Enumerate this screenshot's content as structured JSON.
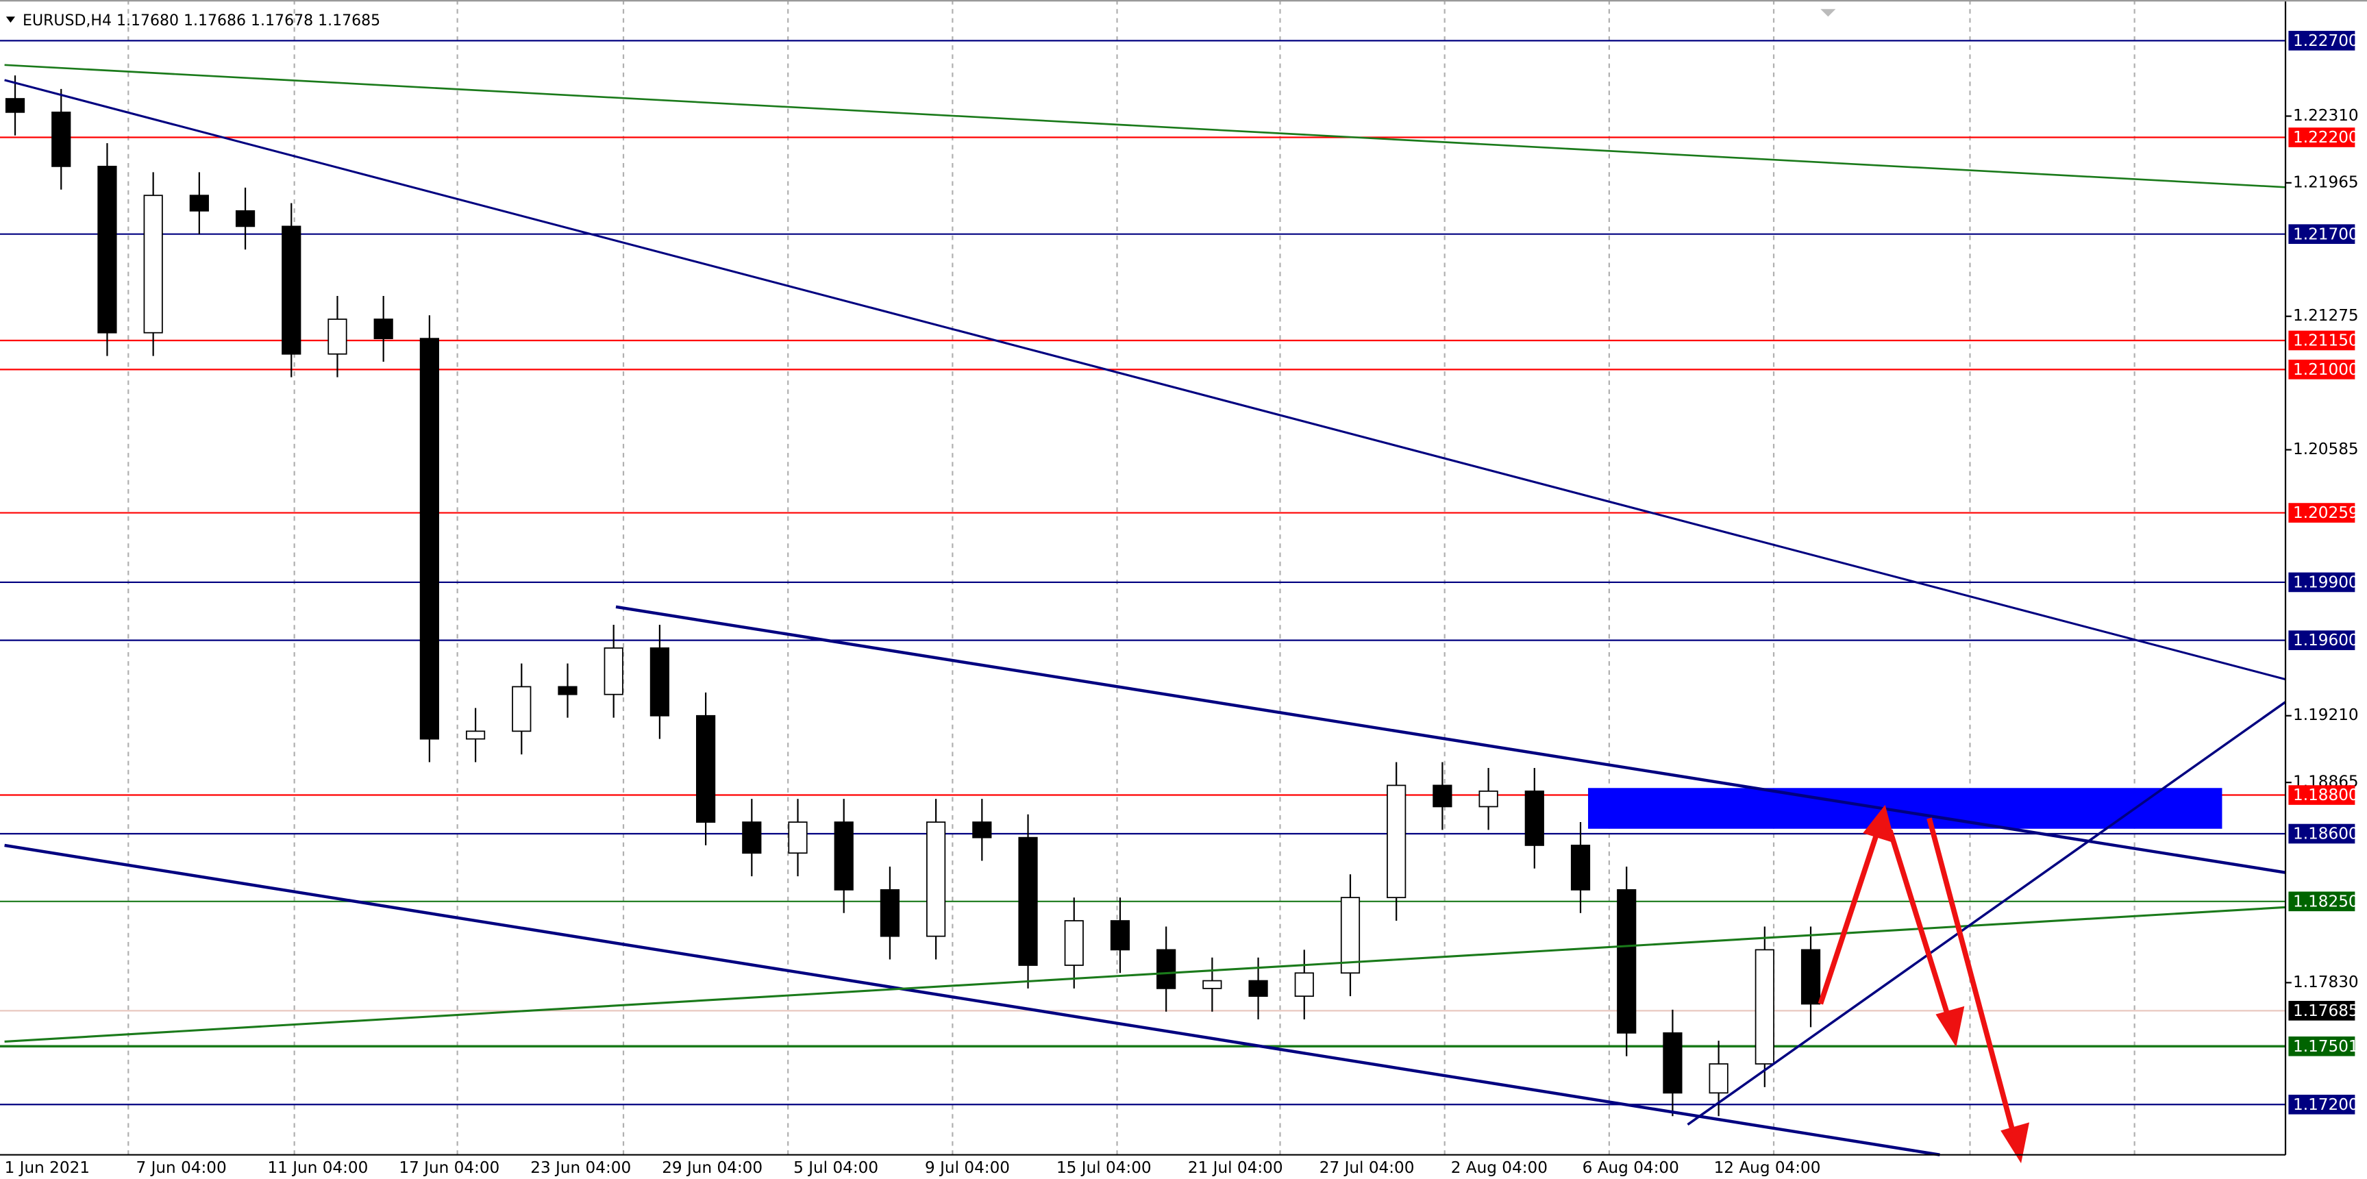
{
  "chart_data": {
    "type": "candlestick",
    "title": "EURUSD,H4  1.17680 1.17686 1.17678 1.17685",
    "ylim": [
      1.1694,
      1.2291
    ],
    "yticks": [
      {
        "value": 1.2231,
        "label": "1.22310"
      },
      {
        "value": 1.21965,
        "label": "1.21965"
      },
      {
        "value": 1.21275,
        "label": "1.21275"
      },
      {
        "value": 1.20585,
        "label": "1.20585"
      },
      {
        "value": 1.1921,
        "label": "1.19210"
      },
      {
        "value": 1.18865,
        "label": "1.18865"
      },
      {
        "value": 1.1783,
        "label": "1.17830"
      }
    ],
    "levels": [
      {
        "value": 1.227,
        "label": "1.22700",
        "color": "#000080"
      },
      {
        "value": 1.222,
        "label": "1.22200",
        "color": "#ff0000"
      },
      {
        "value": 1.217,
        "label": "1.21700",
        "color": "#000080"
      },
      {
        "value": 1.2115,
        "label": "1.21150",
        "color": "#ff0000"
      },
      {
        "value": 1.21,
        "label": "1.21000",
        "color": "#ff0000"
      },
      {
        "value": 1.20259,
        "label": "1.20259",
        "color": "#ff0000"
      },
      {
        "value": 1.199,
        "label": "1.19900",
        "color": "#000080"
      },
      {
        "value": 1.196,
        "label": "1.19600",
        "color": "#000080"
      },
      {
        "value": 1.188,
        "label": "1.18800",
        "color": "#ff0000"
      },
      {
        "value": 1.186,
        "label": "1.18600",
        "color": "#000080"
      },
      {
        "value": 1.1825,
        "label": "1.18250",
        "color": "#006400"
      },
      {
        "value": 1.17685,
        "label": "1.17685",
        "color": "#000000"
      },
      {
        "value": 1.17501,
        "label": "1.17501",
        "color": "#006400"
      },
      {
        "value": 1.172,
        "label": "1.17200",
        "color": "#000080"
      }
    ],
    "x_labels": [
      "1 Jun 2021",
      "7 Jun 04:00",
      "11 Jun 04:00",
      "17 Jun 04:00",
      "23 Jun 04:00",
      "29 Jun 04:00",
      "5 Jul 04:00",
      "9 Jul 04:00",
      "15 Jul 04:00",
      "21 Jul 04:00",
      "27 Jul 04:00",
      "2 Aug 04:00",
      "6 Aug 04:00",
      "12 Aug 04:00"
    ],
    "open": [
      1.224,
      1.2233,
      1.2205,
      1.2119,
      1.219,
      1.2182,
      1.2174,
      1.2108,
      1.2126,
      1.2116,
      1.1909,
      1.1913,
      1.1936,
      1.1932,
      1.1956,
      1.1921,
      1.1866,
      1.185,
      1.1866,
      1.1831,
      1.1807,
      1.1866,
      1.1858,
      1.1792,
      1.1815,
      1.18,
      1.178,
      1.1784,
      1.1776,
      1.1788,
      1.1827,
      1.1885,
      1.1874,
      1.1882,
      1.1854,
      1.1831,
      1.1757,
      1.1726,
      1.1741,
      1.18
    ],
    "high": [
      1.2252,
      1.2245,
      1.2217,
      1.2202,
      1.2202,
      1.2194,
      1.2186,
      1.2138,
      1.2138,
      1.2128,
      1.1925,
      1.1948,
      1.1948,
      1.1968,
      1.1968,
      1.1933,
      1.1878,
      1.1878,
      1.1878,
      1.1843,
      1.1878,
      1.1878,
      1.187,
      1.1827,
      1.1827,
      1.1812,
      1.1796,
      1.1796,
      1.18,
      1.1839,
      1.1897,
      1.1897,
      1.1894,
      1.1894,
      1.1866,
      1.1843,
      1.1769,
      1.1753,
      1.1812,
      1.1812
    ],
    "low": [
      1.2221,
      1.2193,
      1.2107,
      1.2107,
      1.217,
      1.2162,
      1.2096,
      1.2096,
      1.2104,
      1.1897,
      1.1897,
      1.1901,
      1.192,
      1.192,
      1.1909,
      1.1854,
      1.1838,
      1.1838,
      1.1819,
      1.1795,
      1.1795,
      1.1846,
      1.178,
      1.178,
      1.1788,
      1.1768,
      1.1768,
      1.1764,
      1.1764,
      1.1776,
      1.1815,
      1.1862,
      1.1862,
      1.1842,
      1.1819,
      1.1745,
      1.1714,
      1.1714,
      1.1729,
      1.176
    ],
    "close": [
      1.2233,
      1.2205,
      1.2119,
      1.219,
      1.2182,
      1.2174,
      1.2108,
      1.2126,
      1.2116,
      1.1909,
      1.1913,
      1.1936,
      1.1932,
      1.1956,
      1.1921,
      1.1866,
      1.185,
      1.1866,
      1.1831,
      1.1807,
      1.1866,
      1.1858,
      1.1792,
      1.1815,
      1.18,
      1.178,
      1.1784,
      1.1776,
      1.1788,
      1.1827,
      1.1885,
      1.1874,
      1.1882,
      1.1854,
      1.1831,
      1.1757,
      1.1726,
      1.1741,
      1.18,
      1.1772
    ]
  }
}
